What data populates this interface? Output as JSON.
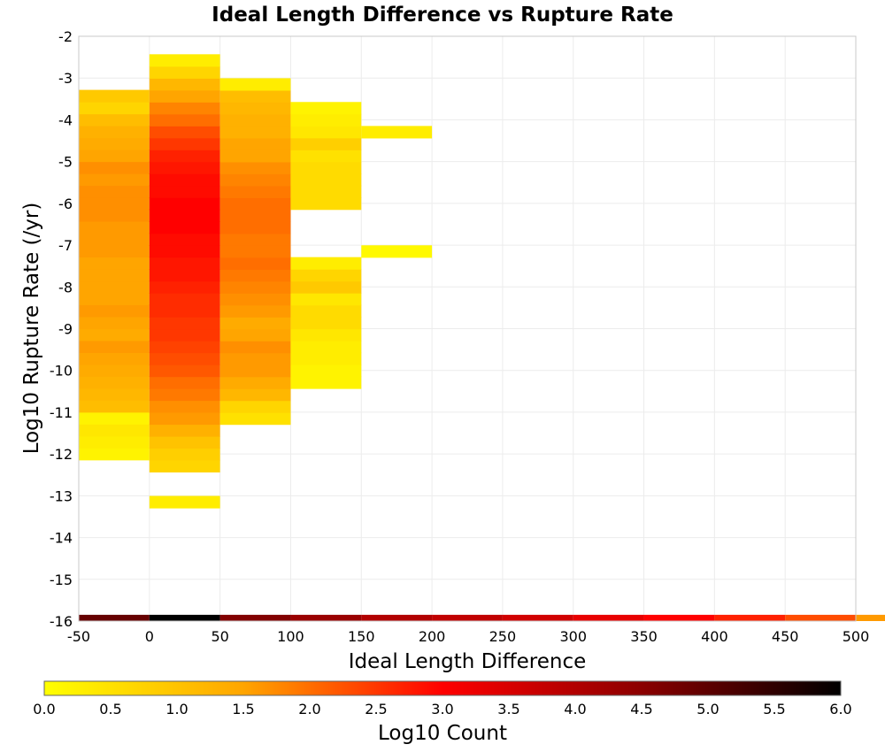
{
  "chart_data": {
    "type": "heatmap",
    "title": "Ideal Length Difference vs Rupture Rate",
    "xlabel": "Ideal Length Difference",
    "ylabel": "Log10 Rupture Rate (/yr)",
    "xlim": [
      -50,
      500
    ],
    "ylim": [
      -16,
      -2
    ],
    "x_ticks": [
      "-50",
      "0",
      "50",
      "100",
      "150",
      "200",
      "250",
      "300",
      "350",
      "400",
      "450",
      "500"
    ],
    "y_ticks": [
      "-2",
      "-3",
      "-4",
      "-5",
      "-6",
      "-7",
      "-8",
      "-9",
      "-10",
      "-11",
      "-12",
      "-13",
      "-14",
      "-15",
      "-16"
    ],
    "x_bin_width": 50,
    "y_bin_height": 0.2857,
    "grid": true,
    "colorbar": {
      "label": "Log10 Count",
      "range": [
        0.0,
        6.0
      ],
      "ticks": [
        "0.0",
        "0.5",
        "1.0",
        "1.5",
        "2.0",
        "2.5",
        "3.0",
        "3.5",
        "4.0",
        "4.5",
        "5.0",
        "5.5",
        "6.0"
      ],
      "colormap": [
        "#ffff00",
        "#ffa500",
        "#ff0000",
        "#8b0000",
        "#000000"
      ]
    },
    "bins": [
      {
        "x_start": -50,
        "y_bottom": -12.14,
        "values": [
          0.2,
          0.3,
          0.4,
          0.2,
          1.1,
          1.2,
          1.3,
          1.4,
          1.5,
          1.6,
          1.4,
          1.5,
          1.6,
          1.5,
          1.5,
          1.5,
          1.5,
          1.6,
          1.6,
          1.6,
          1.7,
          1.7,
          1.7,
          1.6,
          1.7,
          1.5,
          1.4,
          1.3,
          1.1,
          0.7,
          0.9
        ]
      },
      {
        "x_start": 0,
        "y_bottom": -13.29,
        "values": [
          0.3,
          0.0,
          0.0,
          0.0
        ]
      },
      {
        "x_start": 0,
        "y_bottom": -12.43,
        "values": [
          0.7,
          0.8,
          1.0,
          1.3,
          1.6,
          1.7,
          1.9,
          2.0,
          2.2,
          2.3,
          2.4,
          2.5,
          2.5,
          2.6,
          2.6,
          2.7,
          2.8,
          2.8,
          2.9,
          2.9,
          3.0,
          3.0,
          3.0,
          2.9,
          2.9,
          2.8,
          2.7,
          2.5,
          2.3,
          2.0,
          1.8,
          1.5,
          1.2,
          0.7,
          0.3
        ]
      },
      {
        "x_start": 50,
        "y_bottom": -11.29,
        "values": [
          0.5,
          0.7,
          1.2,
          1.4,
          1.6,
          1.6,
          1.7,
          1.5,
          1.4,
          1.6,
          1.7,
          1.8,
          1.9,
          2.0,
          1.9,
          1.9,
          2.0,
          2.0,
          2.0,
          1.9,
          1.8,
          1.7,
          1.5,
          1.5,
          1.3,
          1.3,
          1.2,
          1.1,
          0.3
        ]
      },
      {
        "x_start": 100,
        "y_bottom": -10.43,
        "values": [
          0.2,
          0.2,
          0.3,
          0.3,
          0.4,
          0.6,
          0.6,
          0.4,
          0.9,
          0.7,
          0.3,
          0.0,
          0.0,
          0.0,
          0.0,
          0.6,
          0.6,
          0.6,
          0.6,
          0.5,
          0.8,
          0.4,
          0.3,
          0.2
        ]
      },
      {
        "x_start": 150,
        "y_bottom": -7.29,
        "values": [
          0.1,
          0.0,
          0.0,
          0.0,
          0.0,
          0.0,
          0.0,
          0.0,
          0.0,
          0.0,
          0.3
        ]
      }
    ],
    "bottom_strip": {
      "y_bottom": -16.0,
      "values": [
        4.9,
        6.0,
        4.6,
        4.3,
        4.0,
        3.8,
        3.6,
        3.3,
        3.0,
        2.7,
        2.3,
        1.6
      ]
    }
  }
}
